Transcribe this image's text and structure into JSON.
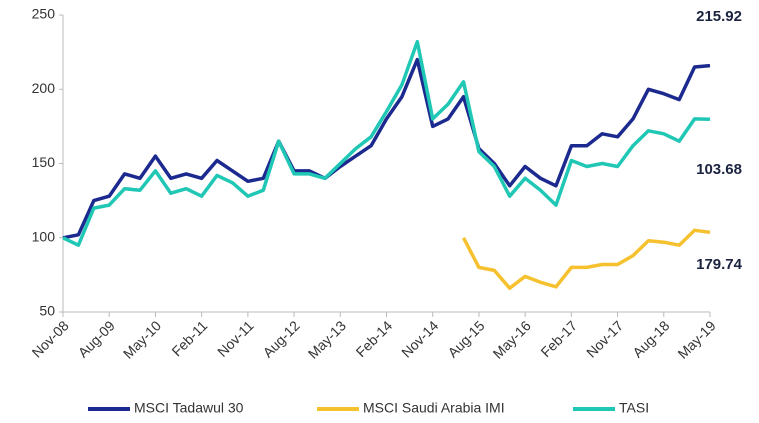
{
  "chart_data": {
    "type": "line",
    "categories": [
      "Nov-08",
      null,
      null,
      "Aug-09",
      null,
      null,
      "May-10",
      null,
      null,
      "Feb-11",
      null,
      null,
      "Nov-11",
      null,
      null,
      "Aug-12",
      null,
      null,
      "May-13",
      null,
      null,
      "Feb-14",
      null,
      null,
      "Nov-14",
      null,
      null,
      "Aug-15",
      null,
      null,
      "May-16",
      null,
      null,
      "Feb-17",
      null,
      null,
      "Nov-17",
      null,
      null,
      "Aug-18",
      null,
      null,
      "May-19"
    ],
    "series": [
      {
        "name": "MSCI Tadawul 30",
        "color": "#1c2a8f",
        "values": [
          100,
          102,
          125,
          128,
          143,
          140,
          155,
          140,
          143,
          140,
          152,
          145,
          138,
          140,
          165,
          145,
          145,
          140,
          148,
          155,
          162,
          180,
          195,
          220,
          175,
          180,
          195,
          160,
          150,
          135,
          148,
          140,
          135,
          162,
          162,
          170,
          168,
          180,
          200,
          197,
          193,
          215,
          215.92
        ]
      },
      {
        "name": "MSCI Saudi Arabia IMI",
        "color": "#f5c12e",
        "values": [
          null,
          null,
          null,
          null,
          null,
          null,
          null,
          null,
          null,
          null,
          null,
          null,
          null,
          null,
          null,
          null,
          null,
          null,
          null,
          null,
          null,
          null,
          null,
          null,
          null,
          null,
          100,
          80,
          78,
          66,
          74,
          70,
          67,
          80,
          80,
          82,
          82,
          88,
          98,
          97,
          95,
          105,
          103.68
        ]
      },
      {
        "name": "TASI",
        "color": "#20c7b5",
        "values": [
          100,
          95,
          120,
          122,
          133,
          132,
          145,
          130,
          133,
          128,
          142,
          137,
          128,
          132,
          165,
          143,
          143,
          140,
          150,
          160,
          168,
          185,
          203,
          232,
          180,
          190,
          205,
          158,
          148,
          128,
          140,
          132,
          122,
          152,
          148,
          150,
          148,
          162,
          172,
          170,
          165,
          180,
          179.74
        ]
      }
    ],
    "ylim": [
      50,
      250
    ],
    "yticks": [
      50,
      100,
      150,
      200,
      250
    ],
    "grid": false
  }
}
